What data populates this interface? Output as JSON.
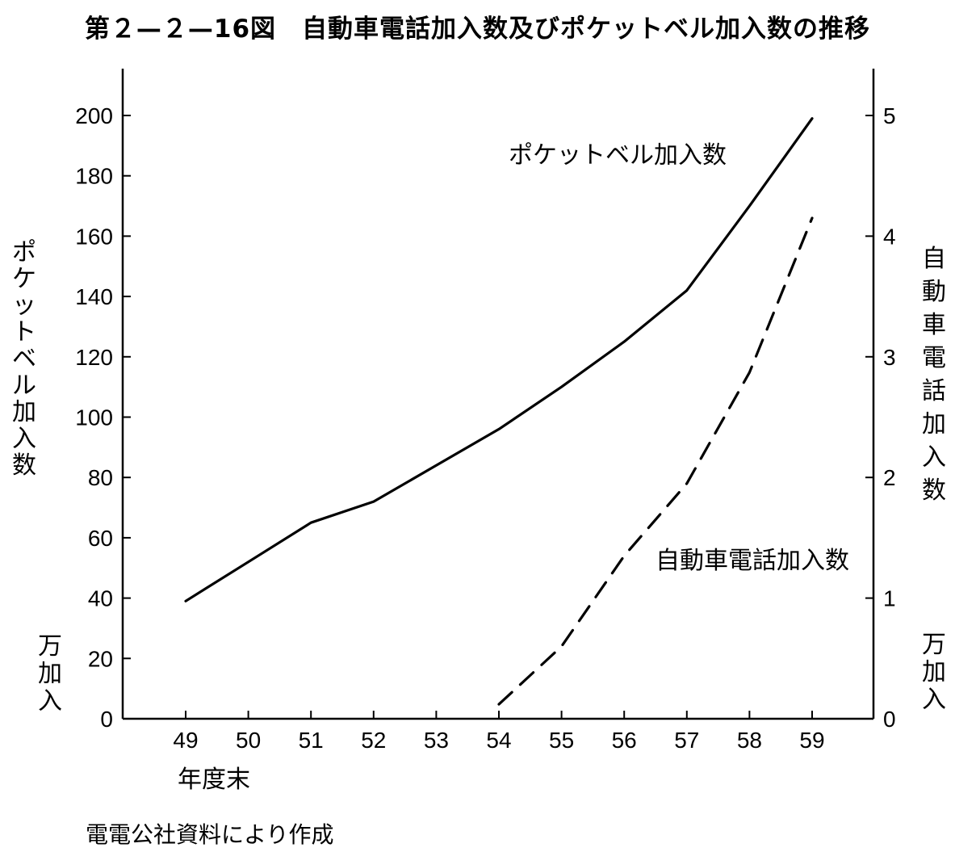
{
  "title": "第２—２—16図　自動車電話加入数及びポケットベル加入数の推移",
  "source_note": "電電公社資料により作成",
  "chart_data": {
    "type": "line",
    "title": "第２—２—16図　自動車電話加入数及びポケットベル加入数の推移",
    "x": [
      "49",
      "50",
      "51",
      "52",
      "53",
      "54",
      "55",
      "56",
      "57",
      "58",
      "59"
    ],
    "xlabel": "年度末",
    "y_left": {
      "label": "ポケットベル加入数",
      "unit": "万加入",
      "ticks": [
        0,
        20,
        40,
        60,
        80,
        100,
        120,
        140,
        160,
        180,
        200
      ],
      "range": [
        0,
        200
      ]
    },
    "y_right": {
      "label": "自動車電話加入数",
      "unit": "万加入",
      "ticks": [
        0,
        1,
        2,
        3,
        4,
        5
      ],
      "range": [
        0,
        5
      ]
    },
    "series": [
      {
        "name": "ポケットベル加入数",
        "axis": "left",
        "style": "solid",
        "x": [
          "49",
          "50",
          "51",
          "52",
          "53",
          "54",
          "55",
          "56",
          "57",
          "58",
          "59"
        ],
        "values": [
          39,
          52,
          65,
          72,
          84,
          96,
          110,
          125,
          142,
          170,
          199
        ]
      },
      {
        "name": "自動車電話加入数",
        "axis": "right",
        "style": "dashed",
        "x": [
          "54",
          "55",
          "56",
          "57",
          "58",
          "59"
        ],
        "values": [
          0.12,
          0.6,
          1.35,
          1.95,
          2.87,
          4.15
        ]
      }
    ],
    "grid": false
  }
}
